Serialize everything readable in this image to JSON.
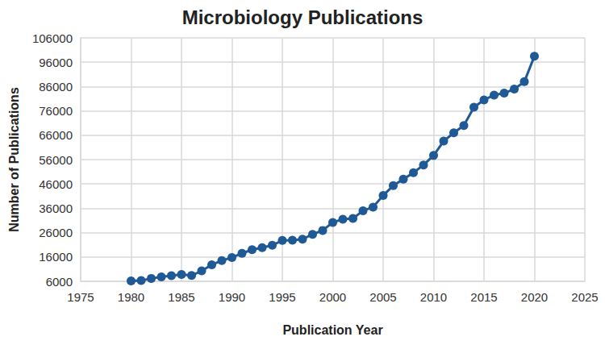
{
  "chart_data": {
    "type": "line",
    "title": "Microbiology Publications",
    "x_label": "Publication Year",
    "y_label": "Number of Publications",
    "x": [
      1980,
      1981,
      1982,
      1983,
      1984,
      1985,
      1986,
      1987,
      1988,
      1989,
      1990,
      1991,
      1992,
      1993,
      1994,
      1995,
      1996,
      1997,
      1998,
      1999,
      2000,
      2001,
      2002,
      2003,
      2004,
      2005,
      2006,
      2007,
      2008,
      2009,
      2010,
      2011,
      2012,
      2013,
      2014,
      2015,
      2016,
      2017,
      2018,
      2019,
      2020
    ],
    "values": [
      6200,
      6300,
      7200,
      7800,
      8300,
      8800,
      8400,
      10300,
      12800,
      14500,
      15800,
      17500,
      19000,
      19800,
      20800,
      22800,
      22900,
      23300,
      25300,
      26900,
      30200,
      31500,
      31800,
      35000,
      36500,
      41300,
      45300,
      48000,
      50600,
      53800,
      57700,
      63600,
      67000,
      70000,
      77500,
      80500,
      82500,
      83300,
      85000,
      88000,
      98500
    ],
    "color": "#1f5a96",
    "marker": "circle",
    "xlim": [
      1975,
      2025
    ],
    "xticks": [
      1975,
      1980,
      1985,
      1990,
      1995,
      2000,
      2005,
      2010,
      2015,
      2020,
      2025
    ],
    "ylim": [
      6000,
      106000
    ],
    "yticks": [
      6000,
      16000,
      26000,
      36000,
      46000,
      56000,
      66000,
      76000,
      86000,
      96000,
      106000
    ],
    "grid": true
  }
}
